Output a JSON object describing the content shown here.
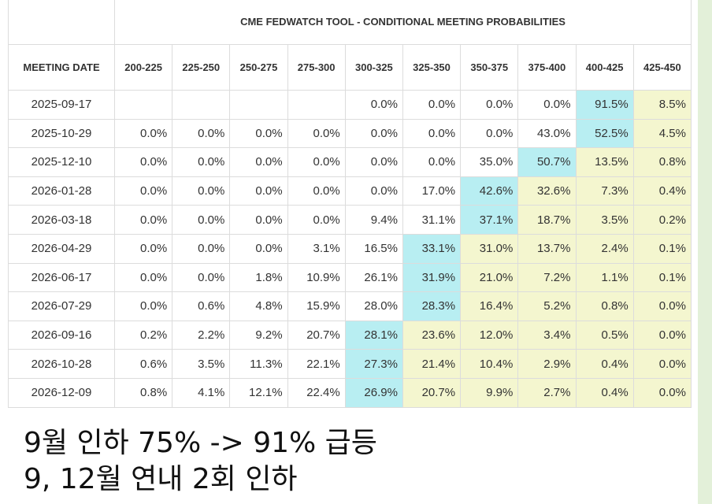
{
  "table": {
    "title": "CME FEDWATCH TOOL - CONDITIONAL MEETING PROBABILITIES",
    "columns": [
      "MEETING DATE",
      "200-225",
      "225-250",
      "250-275",
      "275-300",
      "300-325",
      "325-350",
      "350-375",
      "375-400",
      "400-425",
      "425-450"
    ],
    "rows": [
      [
        "2025-09-17",
        null,
        null,
        null,
        null,
        "0.0%",
        "0.0%",
        "0.0%",
        "0.0%",
        "91.5%",
        "8.5%"
      ],
      [
        "2025-10-29",
        "0.0%",
        "0.0%",
        "0.0%",
        "0.0%",
        "0.0%",
        "0.0%",
        "0.0%",
        "43.0%",
        "52.5%",
        "4.5%"
      ],
      [
        "2025-12-10",
        "0.0%",
        "0.0%",
        "0.0%",
        "0.0%",
        "0.0%",
        "0.0%",
        "35.0%",
        "50.7%",
        "13.5%",
        "0.8%"
      ],
      [
        "2026-01-28",
        "0.0%",
        "0.0%",
        "0.0%",
        "0.0%",
        "0.0%",
        "17.0%",
        "42.6%",
        "32.6%",
        "7.3%",
        "0.4%"
      ],
      [
        "2026-03-18",
        "0.0%",
        "0.0%",
        "0.0%",
        "0.0%",
        "9.4%",
        "31.1%",
        "37.1%",
        "18.7%",
        "3.5%",
        "0.2%"
      ],
      [
        "2026-04-29",
        "0.0%",
        "0.0%",
        "0.0%",
        "3.1%",
        "16.5%",
        "33.1%",
        "31.0%",
        "13.7%",
        "2.4%",
        "0.1%"
      ],
      [
        "2026-06-17",
        "0.0%",
        "0.0%",
        "1.8%",
        "10.9%",
        "26.1%",
        "31.9%",
        "21.0%",
        "7.2%",
        "1.1%",
        "0.1%"
      ],
      [
        "2026-07-29",
        "0.0%",
        "0.6%",
        "4.8%",
        "15.9%",
        "28.0%",
        "28.3%",
        "16.4%",
        "5.2%",
        "0.8%",
        "0.0%"
      ],
      [
        "2026-09-16",
        "0.2%",
        "2.2%",
        "9.2%",
        "20.7%",
        "28.1%",
        "23.6%",
        "12.0%",
        "3.4%",
        "0.5%",
        "0.0%"
      ],
      [
        "2026-10-28",
        "0.6%",
        "3.5%",
        "11.3%",
        "22.1%",
        "27.3%",
        "21.4%",
        "10.4%",
        "2.9%",
        "0.4%",
        "0.0%"
      ],
      [
        "2026-12-09",
        "0.8%",
        "4.1%",
        "12.1%",
        "22.4%",
        "26.9%",
        "20.7%",
        "9.9%",
        "2.7%",
        "0.4%",
        "0.0%"
      ]
    ],
    "highlight_color": "#b8eef2",
    "above_color": "#f4f6cf"
  },
  "message": {
    "lines": [
      "9월 인하 75% -> 91% 급등",
      "9, 12월 연내 2회 인하"
    ]
  }
}
